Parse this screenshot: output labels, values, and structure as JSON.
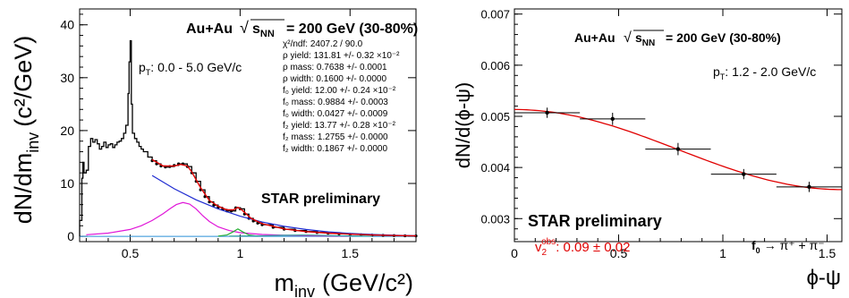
{
  "chart_data": [
    {
      "type": "line",
      "ylabel_main": "dN/dm",
      "ylabel_sub": "inv",
      "ylabel_unit": "(c²/GeV)",
      "xlabel_main": "m",
      "xlabel_sub": "inv",
      "xlabel_unit": "(GeV/c²)",
      "xlim": [
        0.27,
        1.8
      ],
      "ylim": [
        -1,
        43
      ],
      "x_ticks": [
        0.5,
        1,
        1.5
      ],
      "x_tick_labels": [
        "0.5",
        "1",
        "1.5"
      ],
      "y_ticks": [
        0,
        10,
        20,
        30,
        40
      ],
      "y_tick_labels": [
        "0",
        "10",
        "20",
        "30",
        "40"
      ],
      "system_label": "Au+Au",
      "energy_label": "= 200 GeV (30-80%)",
      "sqrt_symbol": "√",
      "energy_var": "s",
      "energy_var_sub": "NN",
      "pt_label_main": "p",
      "pt_label_sub": "T",
      "pt_label_rest": ": 0.0 - 5.0 GeV/c",
      "preliminary_label": "STAR preliminary",
      "fit_results": [
        "χ²/ndf:  2407.2 / 90.0",
        "ρ yield: 131.81 +/- 0.32 ×10⁻²",
        "ρ mass:  0.7638 +/- 0.0001",
        "ρ width:  0.1600 +/- 0.0000",
        "f₀ yield: 12.00 +/- 0.24 ×10⁻²",
        "f₀ mass:  0.9884 +/- 0.0003",
        "f₀ width:  0.0427 +/- 0.0009",
        "f₂ yield: 13.77 +/- 0.28 ×10⁻²",
        "f₂ mass:  1.2755 +/- 0.0000",
        "f₂ width:  0.1867 +/- 0.0000"
      ],
      "data_points": {
        "x": [
          0.27,
          0.28,
          0.285,
          0.29,
          0.3,
          0.31,
          0.32,
          0.33,
          0.34,
          0.35,
          0.36,
          0.37,
          0.38,
          0.39,
          0.4,
          0.41,
          0.42,
          0.43,
          0.44,
          0.45,
          0.46,
          0.47,
          0.48,
          0.49,
          0.495,
          0.5,
          0.505,
          0.51,
          0.52,
          0.53,
          0.54,
          0.55,
          0.56,
          0.58,
          0.6,
          0.62,
          0.64,
          0.66,
          0.68,
          0.7,
          0.72,
          0.74,
          0.76,
          0.78,
          0.8,
          0.82,
          0.84,
          0.86,
          0.88,
          0.9,
          0.92,
          0.94,
          0.96,
          0.98,
          1.0,
          1.02,
          1.04,
          1.06,
          1.08,
          1.1,
          1.15,
          1.2,
          1.25,
          1.3,
          1.35,
          1.4,
          1.45,
          1.5,
          1.55,
          1.6,
          1.65,
          1.7,
          1.75,
          1.8
        ],
        "y": [
          3,
          11,
          14,
          12,
          12.5,
          17,
          18.5,
          17.8,
          18.3,
          17.5,
          16.5,
          17,
          17.8,
          16.8,
          17.3,
          17.5,
          16.8,
          17.3,
          17.8,
          18,
          18.5,
          19.5,
          21,
          27,
          33,
          37,
          25,
          19.5,
          18.5,
          17.8,
          17,
          16.5,
          16,
          15,
          14.3,
          13.7,
          13.3,
          13.1,
          13.2,
          13.4,
          13.7,
          13.7,
          13.2,
          12,
          10.4,
          8.8,
          7.5,
          6.5,
          5.9,
          5.5,
          5.1,
          4.8,
          4.8,
          5.4,
          5.2,
          4.2,
          3.4,
          2.9,
          2.5,
          2.2,
          1.7,
          1.35,
          1.1,
          0.9,
          0.72,
          0.58,
          0.46,
          0.37,
          0.3,
          0.23,
          0.18,
          0.14,
          0.1,
          0.08
        ]
      },
      "total_fit": {
        "x": [
          0.6,
          0.65,
          0.7,
          0.73,
          0.76,
          0.78,
          0.82,
          0.86,
          0.9,
          0.94,
          0.97,
          0.99,
          1.01,
          1.05,
          1.1,
          1.2,
          1.3,
          1.4,
          1.5,
          1.6,
          1.7,
          1.8
        ],
        "y": [
          14.5,
          13.3,
          13.3,
          13.6,
          13.3,
          12.2,
          9.2,
          6.8,
          5.7,
          5.0,
          5.0,
          5.5,
          4.9,
          3.4,
          2.4,
          1.4,
          0.9,
          0.6,
          0.4,
          0.25,
          0.15,
          0.08
        ]
      },
      "background_fit": {
        "x": [
          0.6,
          0.7,
          0.8,
          0.9,
          1.0,
          1.1,
          1.2,
          1.3,
          1.4,
          1.5,
          1.6,
          1.7,
          1.8
        ],
        "y": [
          11.5,
          9.0,
          6.9,
          5.2,
          3.8,
          2.7,
          1.9,
          1.3,
          0.85,
          0.55,
          0.35,
          0.2,
          0.1
        ]
      },
      "rho_component": {
        "x": [
          0.3,
          0.4,
          0.5,
          0.55,
          0.6,
          0.65,
          0.68,
          0.71,
          0.74,
          0.77,
          0.8,
          0.83,
          0.86,
          0.9,
          0.95,
          1.0,
          1.1,
          1.2,
          1.3,
          1.4,
          1.5
        ],
        "y": [
          0.3,
          0.6,
          1.3,
          2.0,
          3.0,
          4.3,
          5.2,
          6.0,
          6.4,
          6.1,
          5.2,
          3.9,
          2.8,
          1.8,
          1.1,
          0.7,
          0.35,
          0.2,
          0.12,
          0.08,
          0.05
        ]
      },
      "f0_component": {
        "x": [
          0.9,
          0.94,
          0.97,
          0.99,
          1.01,
          1.04,
          1.08
        ],
        "y": [
          0.05,
          0.25,
          0.9,
          1.4,
          0.9,
          0.25,
          0.05
        ]
      },
      "f2_component": {
        "x": [
          0.95,
          1.1,
          1.2,
          1.28,
          1.35,
          1.45,
          1.6
        ],
        "y": [
          0.03,
          0.1,
          0.2,
          0.25,
          0.2,
          0.1,
          0.03
        ]
      },
      "colors": {
        "data": "#000000",
        "total_fit": "#e00000",
        "background": "#1f2bd1",
        "rho": "#e016d8",
        "f0": "#27b035",
        "f2": "#3aa0a0",
        "baseline": "#2a8fd8"
      }
    },
    {
      "type": "scatter",
      "ylabel": "dN/d(ϕ-ψ)",
      "xlabel": "ϕ-ψ",
      "xlim": [
        0,
        1.5708
      ],
      "ylim": [
        0.00255,
        0.0071
      ],
      "x_ticks": [
        0,
        0.5,
        1,
        1.5
      ],
      "x_tick_labels": [
        "0",
        "0.5",
        "1",
        "1.5"
      ],
      "y_ticks": [
        0.003,
        0.004,
        0.005,
        0.006,
        0.007
      ],
      "y_tick_labels": [
        "0.003",
        "0.004",
        "0.005",
        "0.006",
        "0.007"
      ],
      "system_label": "Au+Au",
      "energy_label": "= 200 GeV (30-80%)",
      "sqrt_symbol": "√",
      "energy_var": "s",
      "energy_var_sub": "NN",
      "pt_label_main": "p",
      "pt_label_sub": "T",
      "pt_label_rest": ": 1.2 - 2.0 GeV/c",
      "preliminary_label": "STAR preliminary",
      "v2_main": "v",
      "v2_sub": "2",
      "v2_sup": "obs",
      "v2_rest": ": 0.09 ± 0.02",
      "decay_label_main": "f",
      "decay_label_sub": "0",
      "decay_label_rest": "→ π⁺ + π⁻",
      "points": {
        "x": [
          0.157,
          0.471,
          0.785,
          1.1,
          1.414
        ],
        "y": [
          0.00507,
          0.00495,
          0.00436,
          0.00387,
          0.00362
        ],
        "yerr": [
          0.0001,
          0.00012,
          0.00012,
          0.0001,
          0.0001
        ],
        "xerr": 0.157
      },
      "fit": {
        "norm": 0.00435,
        "v2": 0.09
      },
      "colors": {
        "data": "#000000",
        "fit": "#e00000",
        "v2_text": "#e00000"
      }
    }
  ]
}
